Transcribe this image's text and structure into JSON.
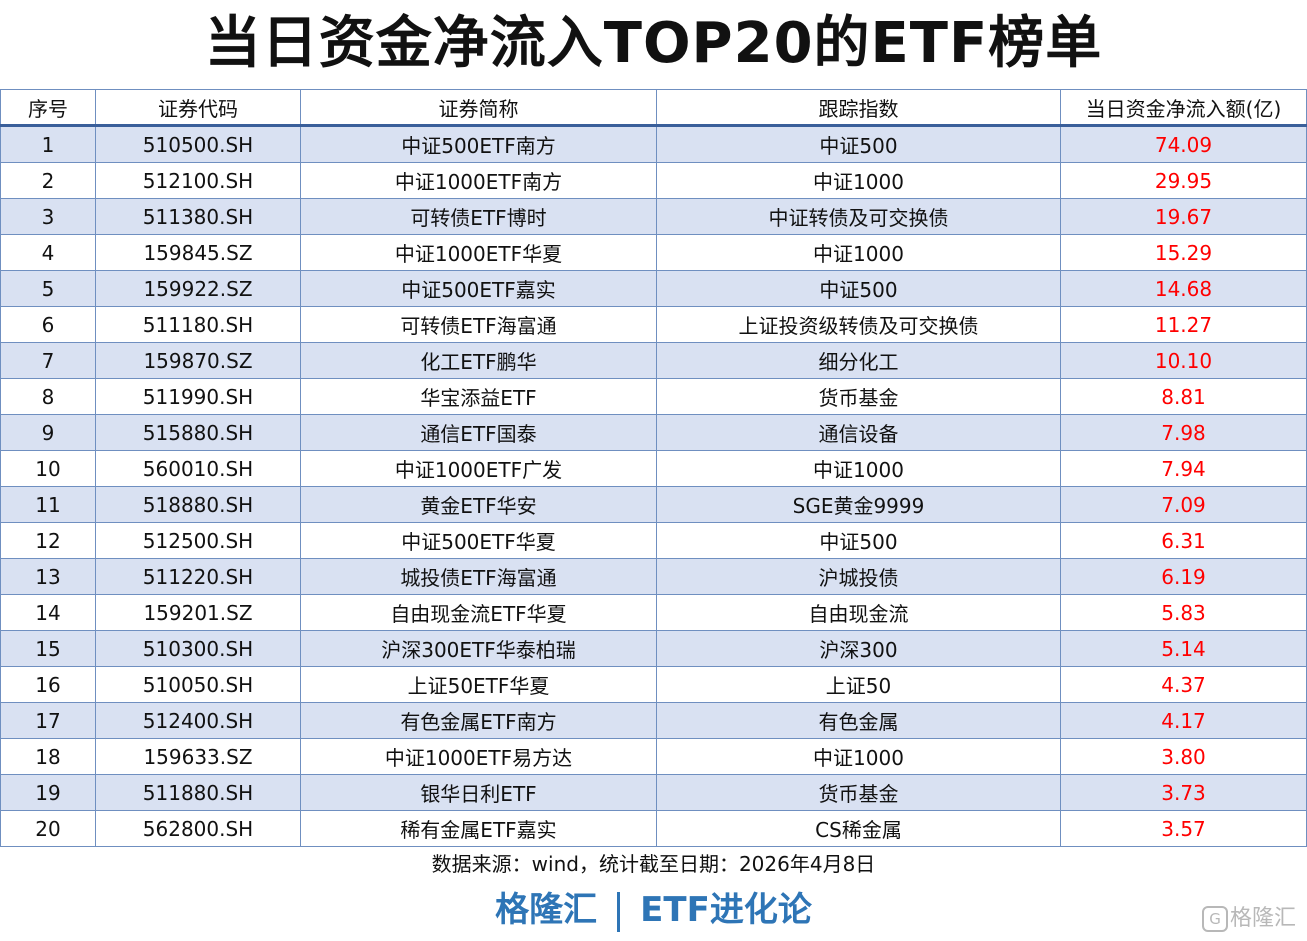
{
  "title": "当日资金净流入TOP20的ETF榜单",
  "columns": [
    "序号",
    "证券代码",
    "证券简称",
    "跟踪指数",
    "当日资金净流入额(亿)"
  ],
  "rows": [
    [
      "1",
      "510500.SH",
      "中证500ETF南方",
      "中证500",
      "74.09"
    ],
    [
      "2",
      "512100.SH",
      "中证1000ETF南方",
      "中证1000",
      "29.95"
    ],
    [
      "3",
      "511380.SH",
      "可转债ETF博时",
      "中证转债及可交换债",
      "19.67"
    ],
    [
      "4",
      "159845.SZ",
      "中证1000ETF华夏",
      "中证1000",
      "15.29"
    ],
    [
      "5",
      "159922.SZ",
      "中证500ETF嘉实",
      "中证500",
      "14.68"
    ],
    [
      "6",
      "511180.SH",
      "可转债ETF海富通",
      "上证投资级转债及可交换债",
      "11.27"
    ],
    [
      "7",
      "159870.SZ",
      "化工ETF鹏华",
      "细分化工",
      "10.10"
    ],
    [
      "8",
      "511990.SH",
      "华宝添益ETF",
      "货币基金",
      "8.81"
    ],
    [
      "9",
      "515880.SH",
      "通信ETF国泰",
      "通信设备",
      "7.98"
    ],
    [
      "10",
      "560010.SH",
      "中证1000ETF广发",
      "中证1000",
      "7.94"
    ],
    [
      "11",
      "518880.SH",
      "黄金ETF华安",
      "SGE黄金9999",
      "7.09"
    ],
    [
      "12",
      "512500.SH",
      "中证500ETF华夏",
      "中证500",
      "6.31"
    ],
    [
      "13",
      "511220.SH",
      "城投债ETF海富通",
      "沪城投债",
      "6.19"
    ],
    [
      "14",
      "159201.SZ",
      "自由现金流ETF华夏",
      "自由现金流",
      "5.83"
    ],
    [
      "15",
      "510300.SH",
      "沪深300ETF华泰柏瑞",
      "沪深300",
      "5.14"
    ],
    [
      "16",
      "510050.SH",
      "上证50ETF华夏",
      "上证50",
      "4.37"
    ],
    [
      "17",
      "512400.SH",
      "有色金属ETF南方",
      "有色金属",
      "4.17"
    ],
    [
      "18",
      "159633.SZ",
      "中证1000ETF易方达",
      "中证1000",
      "3.80"
    ],
    [
      "19",
      "511880.SH",
      "银华日利ETF",
      "货币基金",
      "3.73"
    ],
    [
      "20",
      "562800.SH",
      "稀有金属ETF嘉实",
      "CS稀金属",
      "3.57"
    ]
  ],
  "source": "数据来源：wind，统计截至日期：2026年4月8日",
  "brand": {
    "left": "格隆汇",
    "right": "ETF进化论"
  },
  "watermark": {
    "icon": "G",
    "text": "格隆汇"
  },
  "colors": {
    "net_inflow": "#ff0000",
    "band": "#d9e1f2",
    "brand": "#2e75b6",
    "border": "#6f8fc0"
  }
}
